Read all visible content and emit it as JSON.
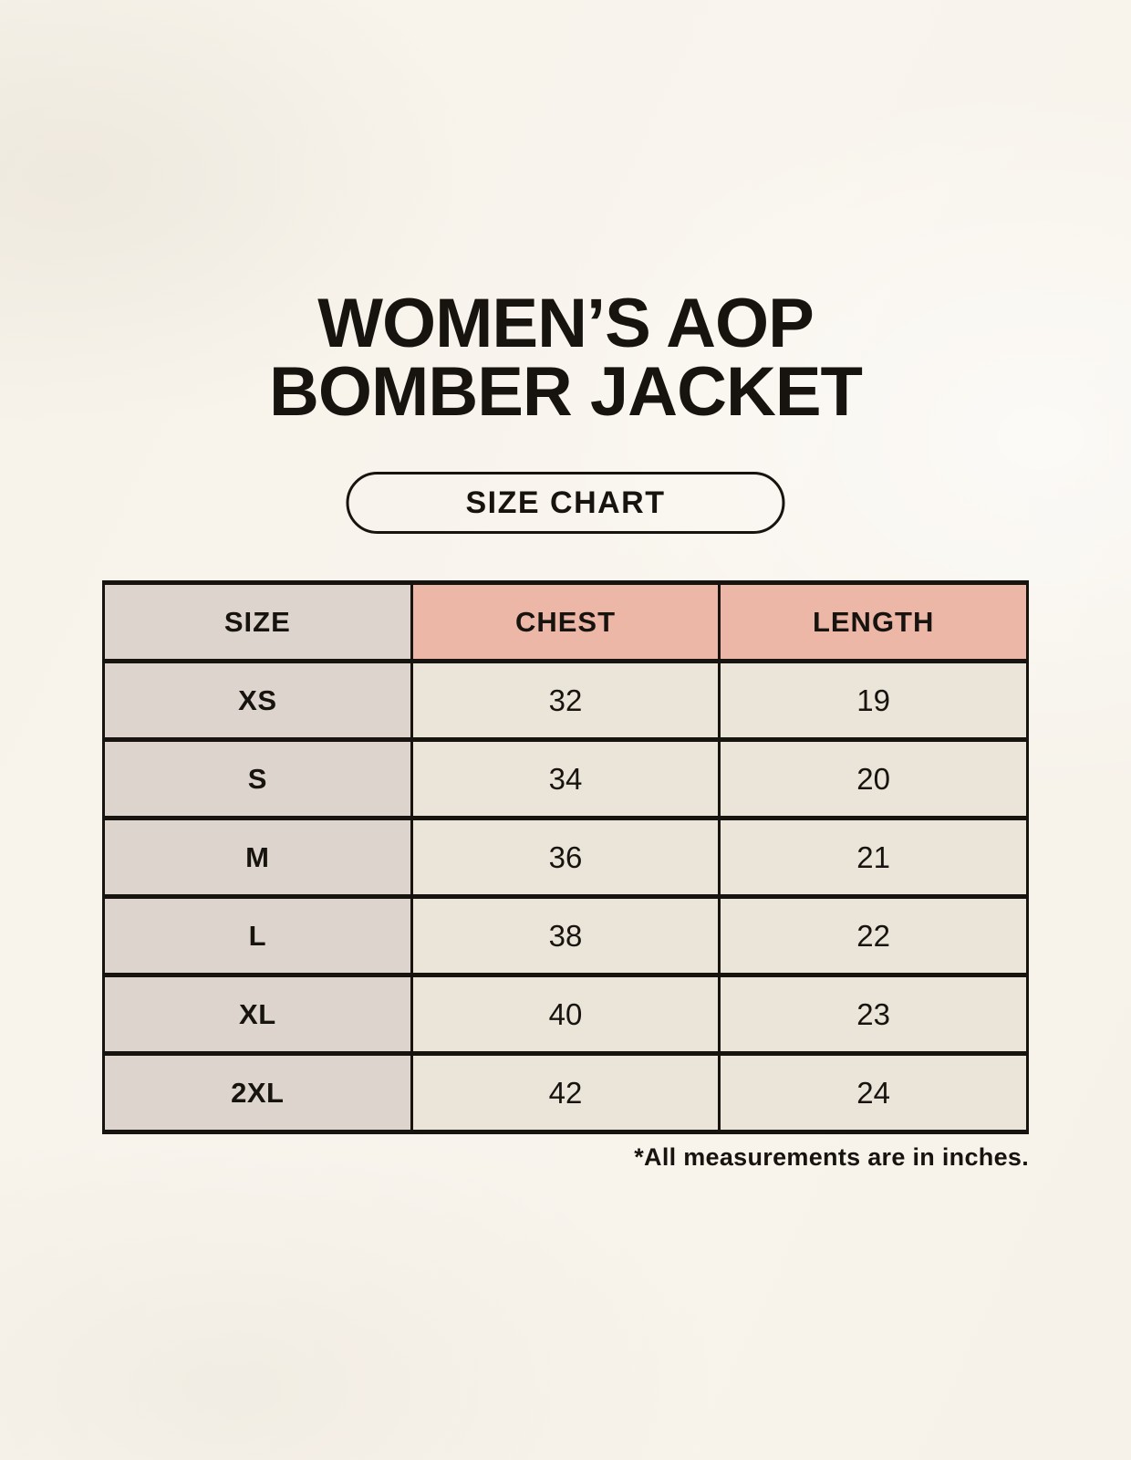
{
  "page": {
    "title_line1": "WOMEN’S AOP",
    "title_line2": "BOMBER JACKET",
    "size_chart_button_label": "SIZE CHART",
    "footnote": "*All measurements are in inches."
  },
  "table": {
    "headers": {
      "size": "SIZE",
      "chest": "CHEST",
      "length": "LENGTH"
    },
    "rows": [
      {
        "size": "XS",
        "chest": "32",
        "length": "19"
      },
      {
        "size": "S",
        "chest": "34",
        "length": "20"
      },
      {
        "size": "M",
        "chest": "36",
        "length": "21"
      },
      {
        "size": "L",
        "chest": "38",
        "length": "22"
      },
      {
        "size": "XL",
        "chest": "40",
        "length": "23"
      },
      {
        "size": "2XL",
        "chest": "42",
        "length": "24"
      }
    ],
    "units": "inches"
  },
  "colors": {
    "page_background": "#f8f4ec",
    "size_column_bg": "#ddd5cd",
    "measure_header_bg": "#ecb7a7",
    "data_cell_bg": "#ebe4d8",
    "text_and_border": "#17140f"
  }
}
